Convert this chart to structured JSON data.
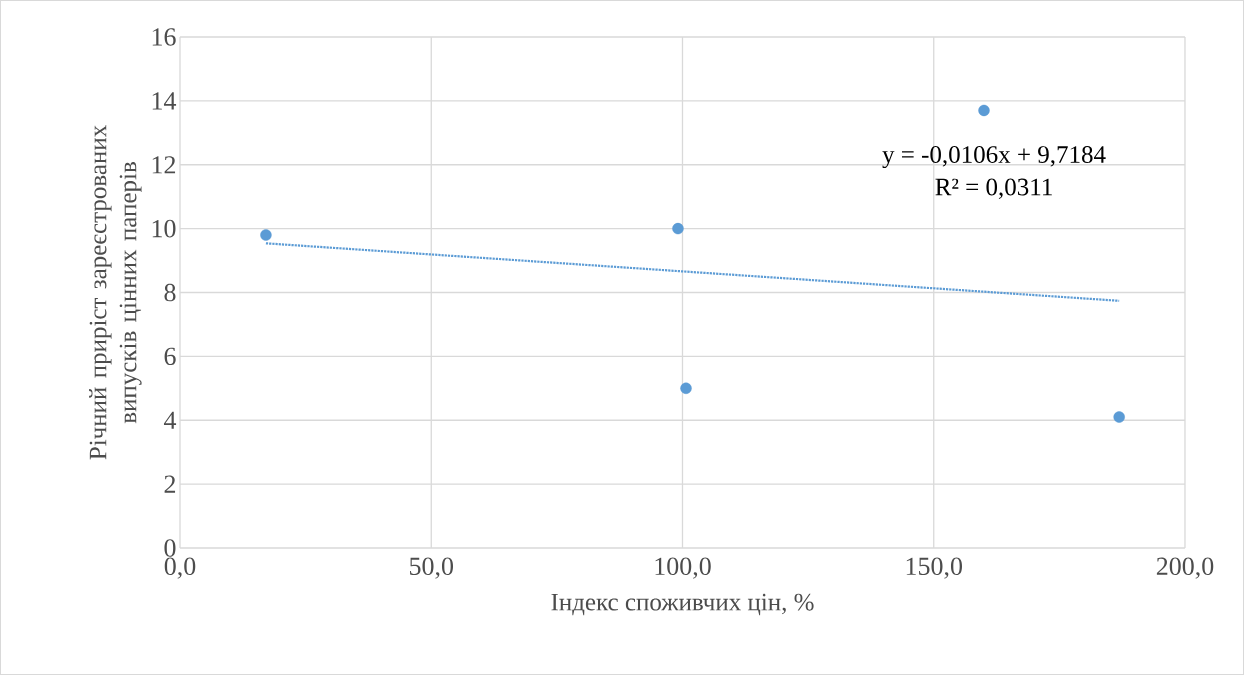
{
  "chart_data": {
    "type": "scatter",
    "xlabel": "Індекс споживчих цін, %",
    "ylabel": "Річний приріст зареєстрованих випусків цінних паперів",
    "series": [
      {
        "color": "#5b9bd5",
        "marker": "circle",
        "x": [
          17.1,
          99.1,
          100.7,
          160.0,
          186.9
        ],
        "values": [
          9.8,
          10.0,
          5.0,
          13.7,
          4.1
        ]
      },
      {
        "type": "line",
        "color": "#5b9bd5",
        "line_style": "dotted",
        "marker": "none",
        "x": [
          17.1,
          186.9
        ],
        "values": [
          9.54,
          7.74
        ]
      }
    ],
    "annotations": [
      "y = -0,0106x + 9,7184",
      "R² = 0,0311"
    ],
    "xlim": [
      0,
      200
    ],
    "xticks": [
      {
        "value": 0,
        "label": "0,0"
      },
      {
        "value": 50,
        "label": "50,0"
      },
      {
        "value": 100,
        "label": "100,0"
      },
      {
        "value": 150,
        "label": "150,0"
      },
      {
        "value": 200,
        "label": "200,0"
      }
    ],
    "ylim": [
      0,
      16
    ],
    "yticks": [
      0,
      2,
      4,
      6,
      8,
      10,
      12,
      14,
      16
    ],
    "grid": true
  }
}
